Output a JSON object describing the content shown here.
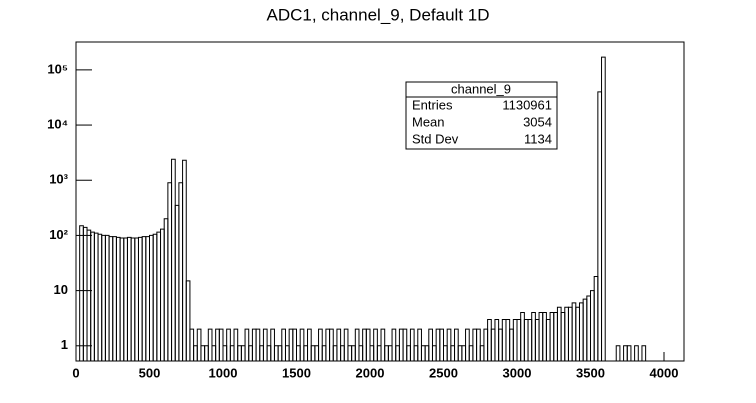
{
  "chart_data": {
    "type": "histogram",
    "title": "ADC1, channel_9, Default 1D",
    "bins": [
      0,
      25,
      50,
      75,
      100,
      125,
      150,
      175,
      200,
      225,
      250,
      275,
      300,
      325,
      350,
      375,
      400,
      425,
      450,
      475,
      500,
      525,
      550,
      575,
      600,
      625,
      650,
      675,
      700,
      725,
      750,
      775,
      800,
      825,
      850,
      875,
      900,
      925,
      950,
      975,
      1000,
      1025,
      1050,
      1075,
      1100,
      1125,
      1150,
      1175,
      1200,
      1225,
      1250,
      1275,
      1300,
      1325,
      1350,
      1375,
      1400,
      1425,
      1450,
      1475,
      1500,
      1525,
      1550,
      1575,
      1600,
      1625,
      1650,
      1675,
      1700,
      1725,
      1750,
      1775,
      1800,
      1825,
      1850,
      1875,
      1900,
      1925,
      1950,
      1975,
      2000,
      2025,
      2050,
      2075,
      2100,
      2125,
      2150,
      2175,
      2200,
      2225,
      2250,
      2275,
      2300,
      2325,
      2350,
      2375,
      2400,
      2425,
      2450,
      2475,
      2500,
      2525,
      2550,
      2575,
      2600,
      2625,
      2650,
      2675,
      2700,
      2725,
      2750,
      2775,
      2800,
      2825,
      2850,
      2875,
      2900,
      2925,
      2950,
      2975,
      3000,
      3025,
      3050,
      3075,
      3100,
      3125,
      3150,
      3175,
      3200,
      3225,
      3250,
      3275,
      3300,
      3325,
      3350,
      3375,
      3400,
      3425,
      3450,
      3475,
      3500,
      3525,
      3550,
      3575,
      3600,
      3625,
      3650,
      3675,
      3700,
      3725,
      3750,
      3775,
      3800,
      3825,
      3850,
      3875,
      3900,
      3925,
      3950,
      3975,
      4000
    ],
    "counts": [
      0,
      150,
      140,
      125,
      115,
      110,
      105,
      100,
      100,
      95,
      95,
      92,
      90,
      90,
      92,
      90,
      90,
      92,
      95,
      95,
      100,
      105,
      115,
      130,
      200,
      900,
      2400,
      350,
      900,
      2300,
      15,
      2,
      1,
      2,
      1,
      1,
      2,
      1,
      2,
      2,
      1,
      2,
      1,
      2,
      1,
      1,
      2,
      1,
      2,
      2,
      1,
      2,
      1,
      2,
      1,
      1,
      2,
      1,
      2,
      2,
      1,
      2,
      1,
      2,
      1,
      1,
      2,
      1,
      2,
      2,
      1,
      2,
      1,
      2,
      1,
      1,
      2,
      1,
      2,
      2,
      1,
      2,
      1,
      2,
      1,
      1,
      2,
      1,
      2,
      2,
      1,
      2,
      1,
      2,
      1,
      1,
      2,
      1,
      2,
      2,
      1,
      2,
      1,
      2,
      1,
      1,
      2,
      1,
      2,
      2,
      1,
      2,
      3,
      2,
      3,
      2,
      3,
      3,
      2,
      3,
      3,
      4,
      3,
      3,
      4,
      3,
      4,
      4,
      3,
      4,
      4,
      5,
      4,
      5,
      5,
      6,
      5,
      6,
      7,
      8,
      10,
      18,
      40000,
      170000,
      0,
      0,
      0,
      1,
      0,
      1,
      1,
      0,
      1,
      0,
      1,
      0,
      0,
      0,
      0,
      0
    ],
    "color": "#000000",
    "xlim": [
      0,
      4136
    ],
    "xticks": [
      0,
      500,
      1000,
      1500,
      2000,
      2500,
      3000,
      3500,
      4000
    ],
    "ylim": [
      0.53,
      320000
    ],
    "log_y": true,
    "yticks": [
      {
        "value": 1,
        "label": "1"
      },
      {
        "value": 10,
        "label": "10"
      },
      {
        "value": 100,
        "label": "10²"
      },
      {
        "value": 1000,
        "label": "10³"
      },
      {
        "value": 10000,
        "label": "10⁴"
      },
      {
        "value": 100000,
        "label": "10⁵"
      }
    ],
    "stats": {
      "title": "channel_9",
      "rows": [
        {
          "name": "Entries",
          "value": "1130961"
        },
        {
          "name": "Mean",
          "value": "3054"
        },
        {
          "name": "Std Dev",
          "value": "1134"
        }
      ]
    }
  }
}
